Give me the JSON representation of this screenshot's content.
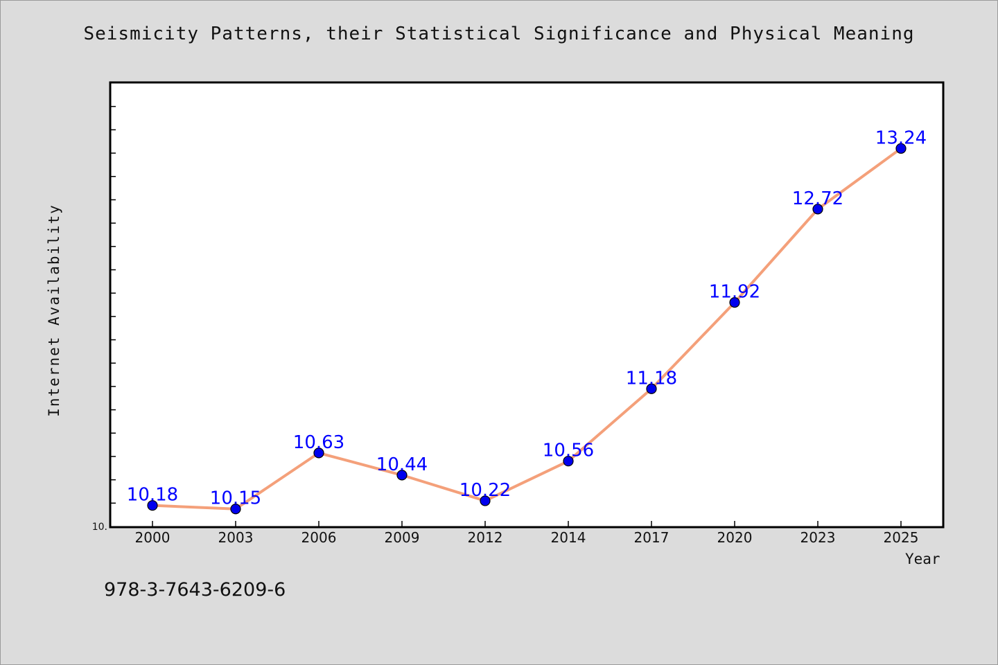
{
  "chart_data": {
    "type": "line",
    "title": "Seismicity Patterns, their Statistical Significance and Physical Meaning",
    "xlabel": "Year",
    "ylabel": "Internet Availability",
    "categories": [
      "2000",
      "2003",
      "2006",
      "2009",
      "2012",
      "2014",
      "2017",
      "2020",
      "2023",
      "2025"
    ],
    "values": [
      10.18,
      10.15,
      10.63,
      10.44,
      10.22,
      10.56,
      11.18,
      11.92,
      12.72,
      13.24
    ],
    "data_labels": [
      "10.18",
      "10.15",
      "10.63",
      "10.44",
      "10.22",
      "10.56",
      "11.18",
      "11.92",
      "12.72",
      "13.24"
    ],
    "ylim": [
      10.0,
      13.8
    ],
    "y_tick_label": "10.",
    "grid": false,
    "line_color": "#f4a07a",
    "marker_color": "#0000ee",
    "label_color": "#0000ff"
  },
  "footer": {
    "isbn": "978-3-7643-6209-6"
  }
}
